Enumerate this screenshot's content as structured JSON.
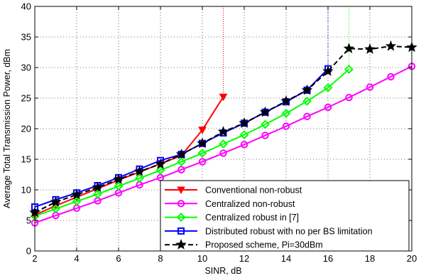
{
  "chart_data": {
    "type": "line",
    "xlabel": "SINR, dB",
    "ylabel": "Average Total Transmission Power, dBm",
    "xlim": [
      2,
      20
    ],
    "ylim": [
      0,
      40
    ],
    "xticks": [
      2,
      4,
      6,
      8,
      10,
      12,
      14,
      16,
      18,
      20
    ],
    "yticks": [
      0,
      5,
      10,
      15,
      20,
      25,
      30,
      35,
      40
    ],
    "grid": true,
    "legend_position": "bottom-right",
    "series": [
      {
        "name": "Conventional non-robust",
        "color": "#ff0000",
        "line_style": "solid",
        "marker": "triangle-down",
        "x": [
          2,
          3,
          4,
          5,
          6,
          7,
          8,
          9,
          10,
          11
        ],
        "y": [
          5.9,
          7.4,
          8.8,
          10.2,
          11.6,
          12.9,
          14.3,
          15.6,
          19.8,
          25.2
        ],
        "vertical_line_x": 11
      },
      {
        "name": "Centralized non-robust",
        "color": "#ff00ff",
        "line_style": "solid",
        "marker": "circle",
        "x": [
          2,
          3,
          4,
          5,
          6,
          7,
          8,
          9,
          10,
          11,
          12,
          13,
          14,
          15,
          16,
          17,
          18,
          19,
          20
        ],
        "y": [
          4.6,
          5.8,
          7.0,
          8.2,
          9.5,
          10.8,
          12.0,
          13.3,
          14.6,
          16.0,
          17.4,
          18.9,
          20.4,
          22.0,
          23.5,
          25.1,
          26.8,
          28.5,
          30.2
        ]
      },
      {
        "name": "Centralized robust in [7]",
        "color": "#00ff00",
        "line_style": "solid",
        "marker": "diamond",
        "x": [
          2,
          3,
          4,
          5,
          6,
          7,
          8,
          9,
          10,
          11,
          12,
          13,
          14,
          15,
          16,
          17
        ],
        "y": [
          5.7,
          6.9,
          8.1,
          9.3,
          10.6,
          11.9,
          13.2,
          14.6,
          16.0,
          17.5,
          19.0,
          20.7,
          22.5,
          24.5,
          26.7,
          29.7
        ],
        "vertical_line_x": 17
      },
      {
        "name": "Distributed robust with no per BS limitation",
        "color": "#0000ff",
        "line_style": "solid",
        "marker": "square",
        "x": [
          2,
          3,
          4,
          5,
          6,
          7,
          8,
          9,
          10,
          11,
          12,
          13,
          14,
          15,
          16
        ],
        "y": [
          7.2,
          8.4,
          9.5,
          10.7,
          12.0,
          13.4,
          14.8,
          15.8,
          17.6,
          19.3,
          20.9,
          22.7,
          24.4,
          26.3,
          29.8
        ],
        "vertical_line_x": 16
      },
      {
        "name": "Proposed scheme, Pi=30dBm",
        "color": "#000000",
        "line_style": "dashed",
        "marker": "star",
        "x": [
          2,
          3,
          4,
          5,
          6,
          7,
          8,
          9,
          10,
          11,
          12,
          13,
          14,
          15,
          16,
          17,
          18,
          19,
          20
        ],
        "y": [
          6.3,
          8.0,
          9.2,
          10.4,
          11.7,
          13.0,
          14.2,
          15.8,
          17.6,
          19.5,
          20.9,
          22.7,
          24.5,
          26.3,
          29.4,
          33.1,
          33.0,
          33.5,
          33.3
        ]
      }
    ]
  }
}
